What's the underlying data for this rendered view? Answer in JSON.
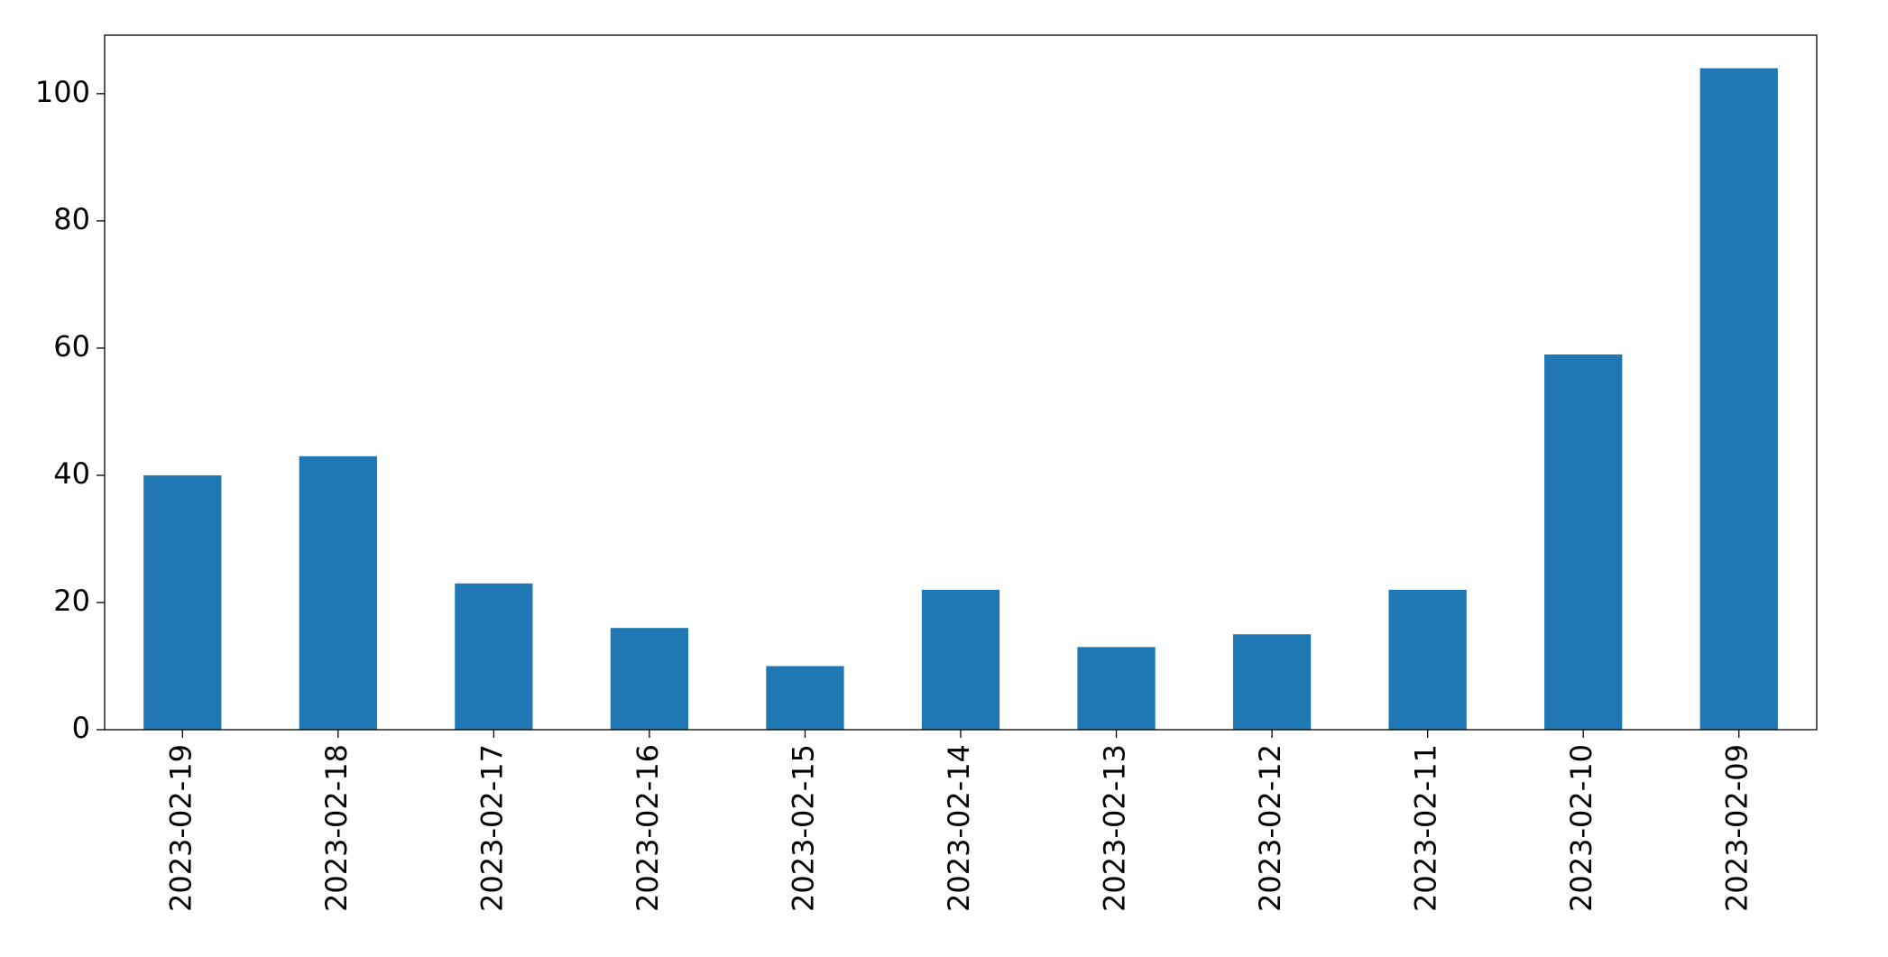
{
  "chart_data": {
    "type": "bar",
    "categories": [
      "2023-02-19",
      "2023-02-18",
      "2023-02-17",
      "2023-02-16",
      "2023-02-15",
      "2023-02-14",
      "2023-02-13",
      "2023-02-12",
      "2023-02-11",
      "2023-02-10",
      "2023-02-09"
    ],
    "values": [
      40,
      43,
      23,
      16,
      10,
      22,
      13,
      15,
      22,
      59,
      104
    ],
    "color": "#1f77b4",
    "ylim": [
      0,
      109.2
    ],
    "yticks": [
      0,
      20,
      40,
      60,
      80,
      100
    ],
    "grid": false
  }
}
